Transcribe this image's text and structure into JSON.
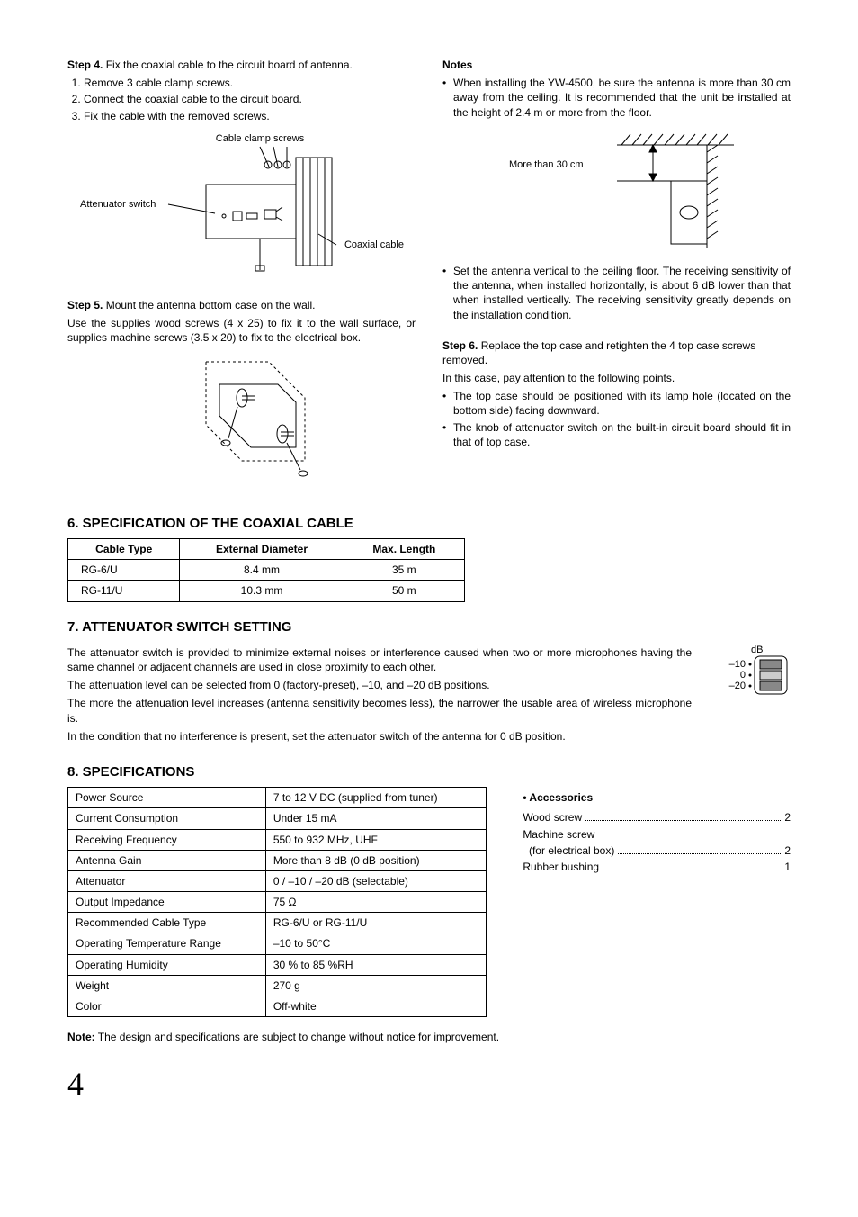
{
  "step4": {
    "label": "Step 4.",
    "text": "Fix the coaxial cable to the circuit board of antenna.",
    "subs": [
      "Remove 3 cable clamp screws.",
      "Connect the coaxial cable to the circuit board.",
      "Fix the cable with the removed screws."
    ],
    "diagram": {
      "cable_clamp_screws": "Cable clamp screws",
      "attenuator_switch": "Attenuator switch",
      "coaxial_cable": "Coaxial cable"
    }
  },
  "step5": {
    "label": "Step 5.",
    "text": "Mount the antenna bottom case on the wall.",
    "para": "Use the supplies wood screws (4 x 25) to fix it to the wall surface, or supplies machine screws (3.5 x 20) to fix to the electrical box."
  },
  "notes": {
    "title": "Notes",
    "items": [
      "When installing the YW-4500, be sure the antenna is more than 30 cm away from the ceiling. It is recommended that the unit be installed at the height of 2.4 m or more from the floor.",
      "Set the antenna vertical to the ceiling floor. The receiving sensitivity of the antenna, when installed horizontally, is about 6 dB lower than that when installed vertically. The receiving sensitivity greatly depends on the installation condition."
    ],
    "diagram_label": "More than 30 cm"
  },
  "step6": {
    "label": "Step 6.",
    "text": "Replace the top case and retighten the 4 top case screws removed.",
    "para": "In this case, pay attention to the following points.",
    "bullets": [
      "The top case should be positioned with its lamp hole (located on the bottom side) facing downward.",
      "The knob of attenuator switch on the built-in circuit board should fit in that of top case."
    ]
  },
  "section6": {
    "title": "6. SPECIFICATION OF THE COAXIAL CABLE",
    "headers": [
      "Cable Type",
      "External Diameter",
      "Max. Length"
    ],
    "rows": [
      [
        "RG-6/U",
        "8.4 mm",
        "35 m"
      ],
      [
        "RG-11/U",
        "10.3 mm",
        "50 m"
      ]
    ]
  },
  "section7": {
    "title": "7. ATTENUATOR SWITCH SETTING",
    "paras": [
      "The attenuator switch is provided to minimize external noises or interference caused when two or more microphones having the same channel or adjacent channels are used in close proximity to each other.",
      "The attenuation level can be selected from 0 (factory-preset), –10, and –20 dB positions.",
      "The more the attenuation level increases (antenna sensitivity becomes less), the narrower the usable area of wireless microphone is.",
      "In the condition that no interference is present, set the attenuator switch of the antenna for 0 dB position."
    ],
    "diagram": {
      "unit": "dB",
      "labels": [
        "–10",
        "0",
        "–20"
      ]
    }
  },
  "section8": {
    "title": "8. SPECIFICATIONS",
    "rows": [
      [
        "Power Source",
        "7 to 12 V DC (supplied from tuner)"
      ],
      [
        "Current Consumption",
        "Under 15 mA"
      ],
      [
        "Receiving Frequency",
        "550 to 932 MHz, UHF"
      ],
      [
        "Antenna Gain",
        "More than 8 dB (0 dB position)"
      ],
      [
        "Attenuator",
        "0 / –10 / –20 dB (selectable)"
      ],
      [
        "Output Impedance",
        "75 Ω"
      ],
      [
        "Recommended Cable Type",
        "RG-6/U or RG-11/U"
      ],
      [
        "Operating Temperature Range",
        "–10 to 50°C"
      ],
      [
        "Operating Humidity",
        "30 % to 85 %RH"
      ],
      [
        "Weight",
        "270 g"
      ],
      [
        "Color",
        "Off-white"
      ]
    ],
    "accessories": {
      "title": "• Accessories",
      "items": [
        {
          "label": "Wood screw",
          "qty": "2"
        },
        {
          "label": "Machine screw\n(for electrical box)",
          "qty": "2"
        },
        {
          "label": "Rubber bushing",
          "qty": "1"
        }
      ]
    },
    "note_label": "Note:",
    "note_text": "The design and specifications are subject to change without notice for improvement."
  },
  "page_number": "4"
}
